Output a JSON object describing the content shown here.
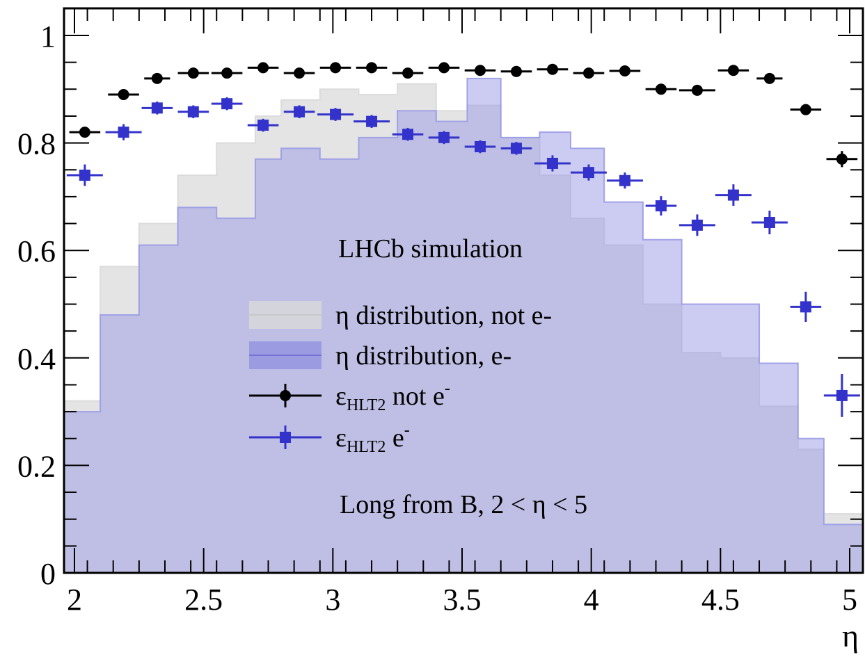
{
  "chart_data": {
    "type": "histogram-with-errorbars",
    "xlabel": "η",
    "ylabel": "",
    "xlim": [
      1.96,
      5.05
    ],
    "ylim": [
      0,
      1.05
    ],
    "grid": false,
    "legend_placement": "center",
    "bin_edges": [
      1.96,
      2.1,
      2.25,
      2.4,
      2.55,
      2.7,
      2.8,
      2.95,
      3.1,
      3.25,
      3.4,
      3.52,
      3.65,
      3.8,
      3.92,
      4.05,
      4.2,
      4.35,
      4.5,
      4.65,
      4.8,
      4.9,
      5.05
    ],
    "x_ticks": [
      2,
      2.5,
      3,
      3.5,
      4,
      4.5,
      5
    ],
    "x_tick_labels": [
      "2",
      "2.5",
      "3",
      "3.5",
      "4",
      "4.5",
      "5"
    ],
    "y_ticks": [
      0,
      0.2,
      0.4,
      0.6,
      0.8,
      1
    ],
    "y_tick_labels": [
      "0",
      "0.2",
      "0.4",
      "0.6",
      "0.8",
      "1"
    ],
    "histograms": [
      {
        "key": "not_e",
        "legend": "η distribution, not e-",
        "fill": "#d9d9d9",
        "opacity": 0.7,
        "values": [
          0.32,
          0.57,
          0.65,
          0.74,
          0.8,
          0.85,
          0.88,
          0.9,
          0.89,
          0.91,
          0.86,
          0.87,
          0.81,
          0.74,
          0.66,
          0.61,
          0.5,
          0.41,
          0.4,
          0.31,
          0.23,
          0.11
        ]
      },
      {
        "key": "e",
        "legend": "η distribution, e-",
        "fill": "#9a9ae6",
        "opacity": 0.5,
        "values": [
          0.3,
          0.48,
          0.61,
          0.68,
          0.66,
          0.77,
          0.79,
          0.77,
          0.81,
          0.86,
          0.84,
          0.92,
          0.81,
          0.82,
          0.79,
          0.69,
          0.62,
          0.5,
          0.5,
          0.39,
          0.25,
          0.09
        ]
      }
    ],
    "series": [
      {
        "key": "eff_not_e",
        "legend_prefix": "ε",
        "legend_sub": "HLT2",
        "legend_suffix": " not e",
        "marker": "circle",
        "color": "#000000",
        "x": [
          2.04,
          2.19,
          2.32,
          2.46,
          2.59,
          2.73,
          2.87,
          3.01,
          3.15,
          3.29,
          3.43,
          3.57,
          3.71,
          3.85,
          3.99,
          4.13,
          4.27,
          4.41,
          4.55,
          4.69,
          4.83,
          4.97
        ],
        "xerr": [
          0.06,
          0.06,
          0.05,
          0.06,
          0.06,
          0.06,
          0.06,
          0.06,
          0.06,
          0.06,
          0.06,
          0.06,
          0.06,
          0.06,
          0.06,
          0.06,
          0.06,
          0.07,
          0.06,
          0.05,
          0.06,
          0.06
        ],
        "y": [
          0.82,
          0.89,
          0.92,
          0.93,
          0.93,
          0.94,
          0.93,
          0.94,
          0.94,
          0.93,
          0.94,
          0.935,
          0.933,
          0.937,
          0.93,
          0.934,
          0.9,
          0.898,
          0.935,
          0.92,
          0.862,
          0.77
        ],
        "yerr": [
          0.005,
          0.005,
          0.005,
          0.005,
          0.005,
          0.005,
          0.005,
          0.005,
          0.005,
          0.005,
          0.005,
          0.005,
          0.005,
          0.005,
          0.005,
          0.005,
          0.005,
          0.005,
          0.005,
          0.005,
          0.005,
          0.015
        ]
      },
      {
        "key": "eff_e",
        "legend_prefix": "ε",
        "legend_sub": "HLT2",
        "legend_suffix": " e",
        "marker": "square",
        "color": "#3333cc",
        "x": [
          2.04,
          2.19,
          2.32,
          2.46,
          2.59,
          2.73,
          2.87,
          3.01,
          3.15,
          3.29,
          3.43,
          3.57,
          3.71,
          3.85,
          3.99,
          4.13,
          4.27,
          4.41,
          4.55,
          4.69,
          4.83,
          4.97
        ],
        "xerr": [
          0.07,
          0.07,
          0.06,
          0.06,
          0.06,
          0.06,
          0.06,
          0.07,
          0.07,
          0.06,
          0.06,
          0.06,
          0.06,
          0.07,
          0.07,
          0.07,
          0.06,
          0.07,
          0.07,
          0.07,
          0.06,
          0.07
        ],
        "y": [
          0.74,
          0.82,
          0.865,
          0.858,
          0.873,
          0.833,
          0.858,
          0.853,
          0.84,
          0.816,
          0.81,
          0.793,
          0.79,
          0.762,
          0.745,
          0.73,
          0.683,
          0.647,
          0.703,
          0.652,
          0.495,
          0.33
        ],
        "yerr": [
          0.02,
          0.015,
          0.012,
          0.012,
          0.012,
          0.012,
          0.012,
          0.012,
          0.012,
          0.012,
          0.012,
          0.012,
          0.012,
          0.015,
          0.015,
          0.015,
          0.018,
          0.02,
          0.02,
          0.022,
          0.028,
          0.04
        ]
      }
    ],
    "annotations": [
      "LHCb simulation",
      "Long from B, 2 < η < 5"
    ]
  }
}
